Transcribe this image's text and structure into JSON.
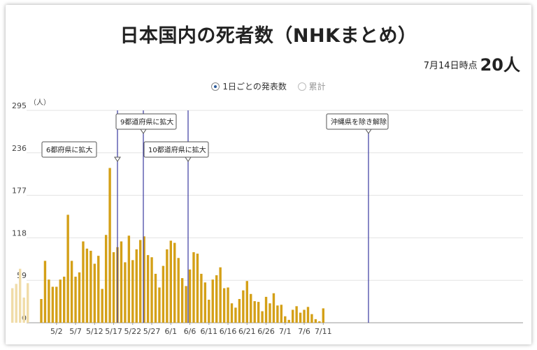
{
  "title": "日本国内の死者数（NHKまとめ）",
  "status": {
    "date": "7月14日時点",
    "count": "20人"
  },
  "toggle": {
    "daily": "1日ごとの発表数",
    "cumulative": "累計",
    "selected": "daily"
  },
  "colors": {
    "bar": "#d4a017",
    "faded_bar": "#f0dca8",
    "annotation_line": "#3a3aa0",
    "grid": "#e3e3e3"
  },
  "chart_data": {
    "type": "bar",
    "unit_label": "（人）",
    "ylim": [
      0,
      295
    ],
    "y_ticks": [
      0,
      59,
      118,
      177,
      236,
      295
    ],
    "x_tick_labels": [
      "5/2",
      "5/7",
      "5/12",
      "5/17",
      "5/22",
      "5/27",
      "6/1",
      "6/6",
      "6/11",
      "6/16",
      "6/21",
      "6/26",
      "7/1",
      "7/6",
      "7/11"
    ],
    "start_date": "4/27",
    "series": [
      {
        "values": [
          33,
          86,
          60,
          50,
          50,
          60,
          64,
          150,
          86,
          64,
          70,
          113,
          103,
          100,
          82,
          93,
          47,
          122,
          215,
          98,
          105,
          113,
          84,
          121,
          87,
          102,
          115,
          120,
          94,
          91,
          68,
          49,
          79,
          102,
          114,
          111,
          90,
          62,
          51,
          74,
          98,
          96,
          68,
          56,
          32,
          60,
          66,
          77,
          48,
          49,
          27,
          21,
          33,
          45,
          58,
          40,
          30,
          29,
          16,
          36,
          27,
          41,
          24,
          25,
          9,
          4,
          18,
          23,
          14,
          18,
          22,
          12,
          5,
          2,
          20
        ]
      }
    ],
    "faded_values": [
      48,
      54,
      75,
      35,
      55
    ],
    "annotations": [
      {
        "label": "6都府県に拡大",
        "date": "5/14"
      },
      {
        "label": "9都道府県に拡大",
        "date": "5/14"
      },
      {
        "label": "10都道府県に拡大",
        "date": "5/21"
      },
      {
        "label": "沖縄県を除き解除",
        "date": "6/18"
      }
    ]
  }
}
